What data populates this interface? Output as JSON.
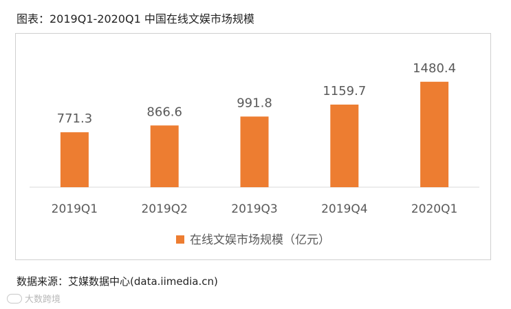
{
  "header": {
    "title": "图表：2019Q1-2020Q1 中国在线文娱市场规模"
  },
  "chart_data": {
    "type": "bar",
    "categories": [
      "2019Q1",
      "2019Q2",
      "2019Q3",
      "2019Q4",
      "2020Q1"
    ],
    "series": [
      {
        "name": "在线文娱市场规模（亿元）",
        "values": [
          771.3,
          866.6,
          991.8,
          1159.7,
          1480.4
        ]
      }
    ],
    "data_labels": [
      "771.3",
      "866.6",
      "991.8",
      "1159.7",
      "1480.4"
    ],
    "title": "",
    "xlabel": "",
    "ylabel": "",
    "ylim": [
      0,
      1600
    ],
    "grid": false,
    "legend": {
      "position": "bottom"
    },
    "colors": {
      "bar": "#ED7D31",
      "axis": "#D9D9D9",
      "text": "#595959"
    }
  },
  "footer": {
    "source": "数据来源：艾媒数据中心(data.iimedia.cn)",
    "watermark": "大数跨境"
  }
}
